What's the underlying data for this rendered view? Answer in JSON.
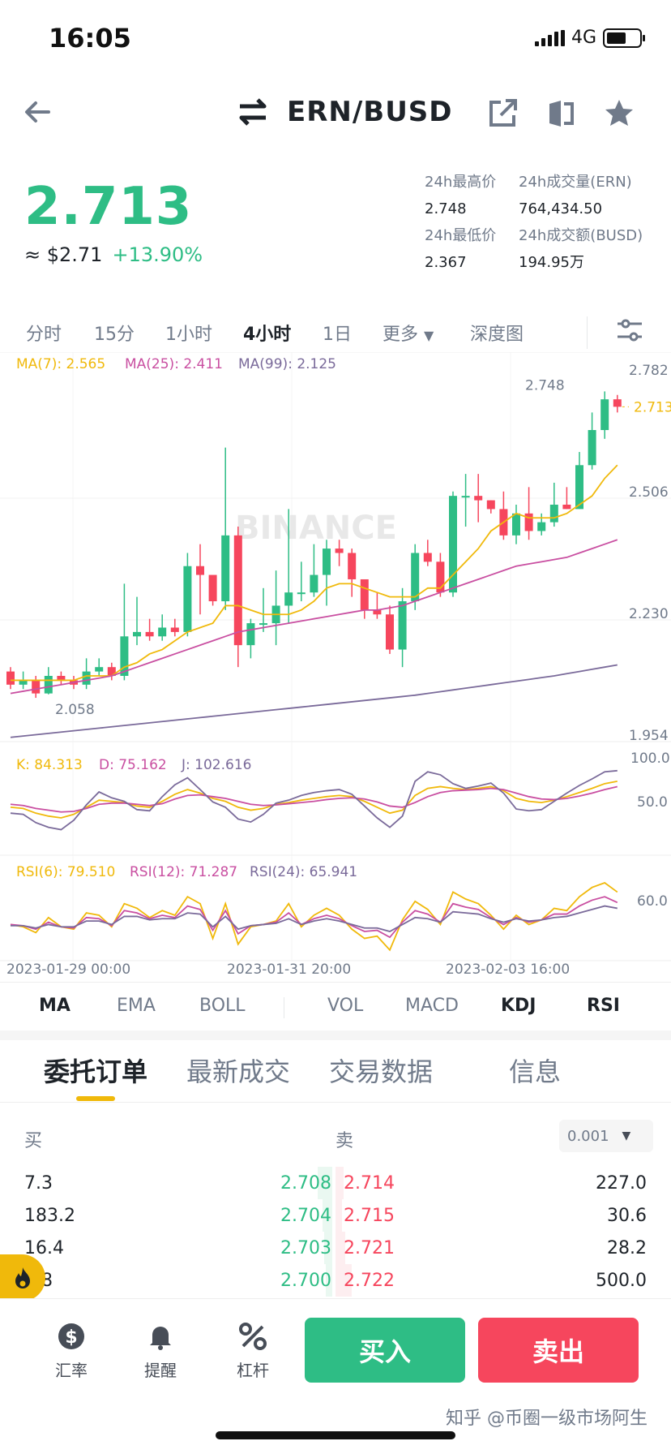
{
  "status_bar": {
    "time": "16:05",
    "network": "4G"
  },
  "header": {
    "pair": "ERN/BUSD"
  },
  "price": {
    "last": "2.713",
    "usd": "≈ $2.71",
    "change": "+13.90%"
  },
  "stats": {
    "high_label": "24h最高价",
    "high_value": "2.748",
    "low_label": "24h最低价",
    "low_value": "2.367",
    "vol_ern_label": "24h成交量(ERN)",
    "vol_ern_value": "764,434.50",
    "vol_busd_label": "24h成交额(BUSD)",
    "vol_busd_value": "194.95万"
  },
  "interval_tabs": [
    "分时",
    "15分",
    "1小时",
    "4小时",
    "1日",
    "更多",
    "深度图"
  ],
  "active_interval": "4小时",
  "indicator_tabs": [
    "MA",
    "EMA",
    "BOLL",
    "VOL",
    "MACD",
    "KDJ",
    "RSI"
  ],
  "orderbook_tabs": [
    "委托订单",
    "最新成交",
    "交易数据",
    "信息"
  ],
  "orderbook": {
    "buy_label": "买",
    "sell_label": "卖",
    "precision": "0.001",
    "rows": [
      {
        "bid_qty": "7.3",
        "bid": "2.708",
        "ask": "2.714",
        "ask_qty": "227.0"
      },
      {
        "bid_qty": "183.2",
        "bid": "2.704",
        "ask": "2.715",
        "ask_qty": "30.6"
      },
      {
        "bid_qty": "16.4",
        "bid": "2.703",
        "ask": "2.721",
        "ask_qty": "28.2"
      },
      {
        "bid_qty": ".8",
        "bid": "2.700",
        "ask": "2.722",
        "ask_qty": "500.0"
      }
    ]
  },
  "bottom_nav": {
    "rate": "汇率",
    "alert": "提醒",
    "leverage": "杠杆",
    "buy": "买入",
    "sell": "卖出"
  },
  "watermark": "知乎 @币圈一级市场阿生",
  "colors": {
    "up": "#2ebd85",
    "down": "#f6465d",
    "accent": "#f0b90b"
  },
  "chart_data": {
    "type": "candlestick",
    "title": "",
    "price_axis": [
      "2.782",
      "2.506",
      "2.230",
      "1.954"
    ],
    "ylim": [
      1.954,
      2.782
    ],
    "last_price_tag": "2.713",
    "high_marker": "2.748",
    "low_marker": "2.058",
    "time_labels": [
      "2023-01-29 00:00",
      "2023-01-31 20:00",
      "2023-02-03 16:00"
    ],
    "ma_legend": {
      "ma7": "MA(7): 2.565",
      "ma25": "MA(25): 2.411",
      "ma99": "MA(99): 2.125"
    },
    "kdj_legend": {
      "k": "K: 84.313",
      "d": "D: 75.162",
      "j": "J: 102.616"
    },
    "kdj_axis": [
      "100.0",
      "50.0"
    ],
    "rsi_legend": {
      "r6": "RSI(6): 79.510",
      "r12": "RSI(12): 71.287",
      "r24": "RSI(24): 65.941"
    },
    "rsi_axis": [
      "60.0"
    ],
    "watermark_text": "BINANCE",
    "candles": [
      [
        2.11,
        2.08,
        2.12,
        2.07
      ],
      [
        2.08,
        2.09,
        2.11,
        2.07
      ],
      [
        2.09,
        2.06,
        2.1,
        2.05
      ],
      [
        2.06,
        2.1,
        2.12,
        2.058
      ],
      [
        2.1,
        2.09,
        2.11,
        2.08
      ],
      [
        2.09,
        2.08,
        2.1,
        2.07
      ],
      [
        2.08,
        2.11,
        2.14,
        2.07
      ],
      [
        2.11,
        2.12,
        2.14,
        2.1
      ],
      [
        2.12,
        2.1,
        2.13,
        2.09
      ],
      [
        2.1,
        2.19,
        2.31,
        2.09
      ],
      [
        2.19,
        2.2,
        2.28,
        2.17
      ],
      [
        2.2,
        2.19,
        2.23,
        2.18
      ],
      [
        2.19,
        2.21,
        2.24,
        2.18
      ],
      [
        2.21,
        2.2,
        2.23,
        2.19
      ],
      [
        2.2,
        2.35,
        2.38,
        2.19
      ],
      [
        2.35,
        2.33,
        2.4,
        2.24
      ],
      [
        2.33,
        2.27,
        2.3,
        2.26
      ],
      [
        2.27,
        2.42,
        2.62,
        2.25
      ],
      [
        2.42,
        2.17,
        2.44,
        2.12
      ],
      [
        2.17,
        2.22,
        2.23,
        2.14
      ],
      [
        2.22,
        2.22,
        2.3,
        2.2
      ],
      [
        2.22,
        2.26,
        2.34,
        2.17
      ],
      [
        2.26,
        2.29,
        2.48,
        2.22
      ],
      [
        2.29,
        2.29,
        2.36,
        2.27
      ],
      [
        2.29,
        2.33,
        2.4,
        2.28
      ],
      [
        2.33,
        2.39,
        2.41,
        2.26
      ],
      [
        2.39,
        2.38,
        2.41,
        2.35
      ],
      [
        2.38,
        2.32,
        2.39,
        2.28
      ],
      [
        2.32,
        2.25,
        2.29,
        2.23
      ],
      [
        2.25,
        2.24,
        2.29,
        2.23
      ],
      [
        2.24,
        2.16,
        2.26,
        2.15
      ],
      [
        2.16,
        2.27,
        2.3,
        2.12
      ],
      [
        2.27,
        2.38,
        2.4,
        2.25
      ],
      [
        2.38,
        2.36,
        2.41,
        2.35
      ],
      [
        2.36,
        2.29,
        2.38,
        2.28
      ],
      [
        2.29,
        2.51,
        2.52,
        2.28
      ],
      [
        2.51,
        2.51,
        2.56,
        2.44
      ],
      [
        2.51,
        2.5,
        2.56,
        2.45
      ],
      [
        2.5,
        2.48,
        2.5,
        2.47
      ],
      [
        2.48,
        2.42,
        2.52,
        2.41
      ],
      [
        2.42,
        2.47,
        2.49,
        2.4
      ],
      [
        2.47,
        2.43,
        2.53,
        2.41
      ],
      [
        2.43,
        2.45,
        2.47,
        2.42
      ],
      [
        2.45,
        2.49,
        2.54,
        2.44
      ],
      [
        2.49,
        2.48,
        2.53,
        2.48
      ],
      [
        2.48,
        2.58,
        2.61,
        2.48
      ],
      [
        2.58,
        2.66,
        2.7,
        2.57
      ],
      [
        2.66,
        2.73,
        2.748,
        2.64
      ],
      [
        2.73,
        2.713,
        2.74,
        2.7
      ]
    ],
    "ma7": [
      2.09,
      2.09,
      2.09,
      2.09,
      2.09,
      2.09,
      2.1,
      2.1,
      2.1,
      2.12,
      2.13,
      2.15,
      2.16,
      2.18,
      2.2,
      2.21,
      2.22,
      2.26,
      2.26,
      2.25,
      2.24,
      2.24,
      2.24,
      2.25,
      2.27,
      2.3,
      2.31,
      2.31,
      2.3,
      2.29,
      2.28,
      2.28,
      2.28,
      2.3,
      2.3,
      2.33,
      2.36,
      2.39,
      2.43,
      2.45,
      2.47,
      2.46,
      2.46,
      2.46,
      2.47,
      2.49,
      2.51,
      2.55,
      2.58
    ],
    "ma25": [
      2.06,
      2.065,
      2.07,
      2.075,
      2.08,
      2.085,
      2.09,
      2.095,
      2.1,
      2.11,
      2.12,
      2.13,
      2.14,
      2.15,
      2.16,
      2.17,
      2.18,
      2.19,
      2.2,
      2.205,
      2.21,
      2.215,
      2.22,
      2.225,
      2.23,
      2.235,
      2.24,
      2.245,
      2.25,
      2.25,
      2.255,
      2.26,
      2.27,
      2.28,
      2.29,
      2.3,
      2.31,
      2.32,
      2.33,
      2.34,
      2.35,
      2.355,
      2.36,
      2.365,
      2.37,
      2.38,
      2.39,
      2.4,
      2.41
    ],
    "ma99": [
      1.96,
      1.963,
      1.966,
      1.969,
      1.972,
      1.975,
      1.978,
      1.981,
      1.984,
      1.987,
      1.99,
      1.993,
      1.996,
      1.999,
      2.002,
      2.005,
      2.008,
      2.011,
      2.014,
      2.017,
      2.02,
      2.023,
      2.026,
      2.029,
      2.032,
      2.035,
      2.038,
      2.041,
      2.044,
      2.047,
      2.05,
      2.053,
      2.056,
      2.06,
      2.064,
      2.068,
      2.072,
      2.076,
      2.08,
      2.084,
      2.088,
      2.092,
      2.096,
      2.1,
      2.105,
      2.11,
      2.115,
      2.12,
      2.125
    ],
    "k": [
      40,
      38,
      30,
      25,
      22,
      28,
      40,
      52,
      50,
      48,
      42,
      40,
      50,
      62,
      70,
      64,
      55,
      50,
      40,
      35,
      38,
      45,
      48,
      52,
      55,
      58,
      60,
      58,
      50,
      40,
      30,
      35,
      60,
      72,
      75,
      72,
      70,
      72,
      75,
      68,
      55,
      50,
      48,
      52,
      58,
      65,
      72,
      80,
      84
    ],
    "d": [
      45,
      43,
      38,
      35,
      32,
      33,
      38,
      45,
      47,
      47,
      45,
      43,
      46,
      54,
      60,
      61,
      58,
      55,
      50,
      45,
      43,
      44,
      46,
      48,
      50,
      53,
      55,
      56,
      54,
      49,
      42,
      40,
      48,
      58,
      65,
      68,
      69,
      70,
      72,
      70,
      64,
      58,
      54,
      53,
      55,
      59,
      64,
      70,
      75
    ],
    "j": [
      30,
      28,
      14,
      6,
      2,
      18,
      44,
      66,
      56,
      50,
      36,
      34,
      58,
      78,
      90,
      70,
      49,
      40,
      20,
      15,
      28,
      47,
      52,
      60,
      65,
      68,
      70,
      62,
      42,
      22,
      6,
      25,
      84,
      100,
      95,
      80,
      72,
      76,
      81,
      64,
      37,
      34,
      36,
      50,
      64,
      77,
      88,
      100,
      102
    ],
    "rsi6": [
      52,
      50,
      45,
      58,
      50,
      48,
      62,
      60,
      50,
      70,
      66,
      58,
      64,
      60,
      76,
      70,
      40,
      70,
      35,
      50,
      52,
      55,
      70,
      50,
      60,
      66,
      60,
      48,
      40,
      42,
      30,
      56,
      72,
      65,
      52,
      80,
      74,
      70,
      60,
      48,
      60,
      52,
      56,
      66,
      64,
      76,
      84,
      88,
      80
    ],
    "rsi12": [
      52,
      51,
      48,
      54,
      50,
      49,
      58,
      57,
      51,
      64,
      62,
      57,
      60,
      58,
      68,
      65,
      47,
      64,
      44,
      51,
      52,
      54,
      62,
      52,
      57,
      60,
      57,
      51,
      46,
      47,
      41,
      54,
      64,
      61,
      54,
      70,
      67,
      65,
      58,
      52,
      58,
      54,
      56,
      61,
      61,
      68,
      73,
      76,
      71
    ],
    "rsi24": [
      51,
      51,
      49,
      52,
      50,
      50,
      55,
      55,
      52,
      59,
      59,
      56,
      57,
      57,
      62,
      61,
      50,
      59,
      48,
      51,
      52,
      53,
      57,
      52,
      55,
      57,
      55,
      52,
      49,
      49,
      46,
      52,
      58,
      57,
      54,
      63,
      62,
      61,
      57,
      54,
      57,
      55,
      56,
      58,
      59,
      62,
      65,
      68,
      66
    ]
  }
}
